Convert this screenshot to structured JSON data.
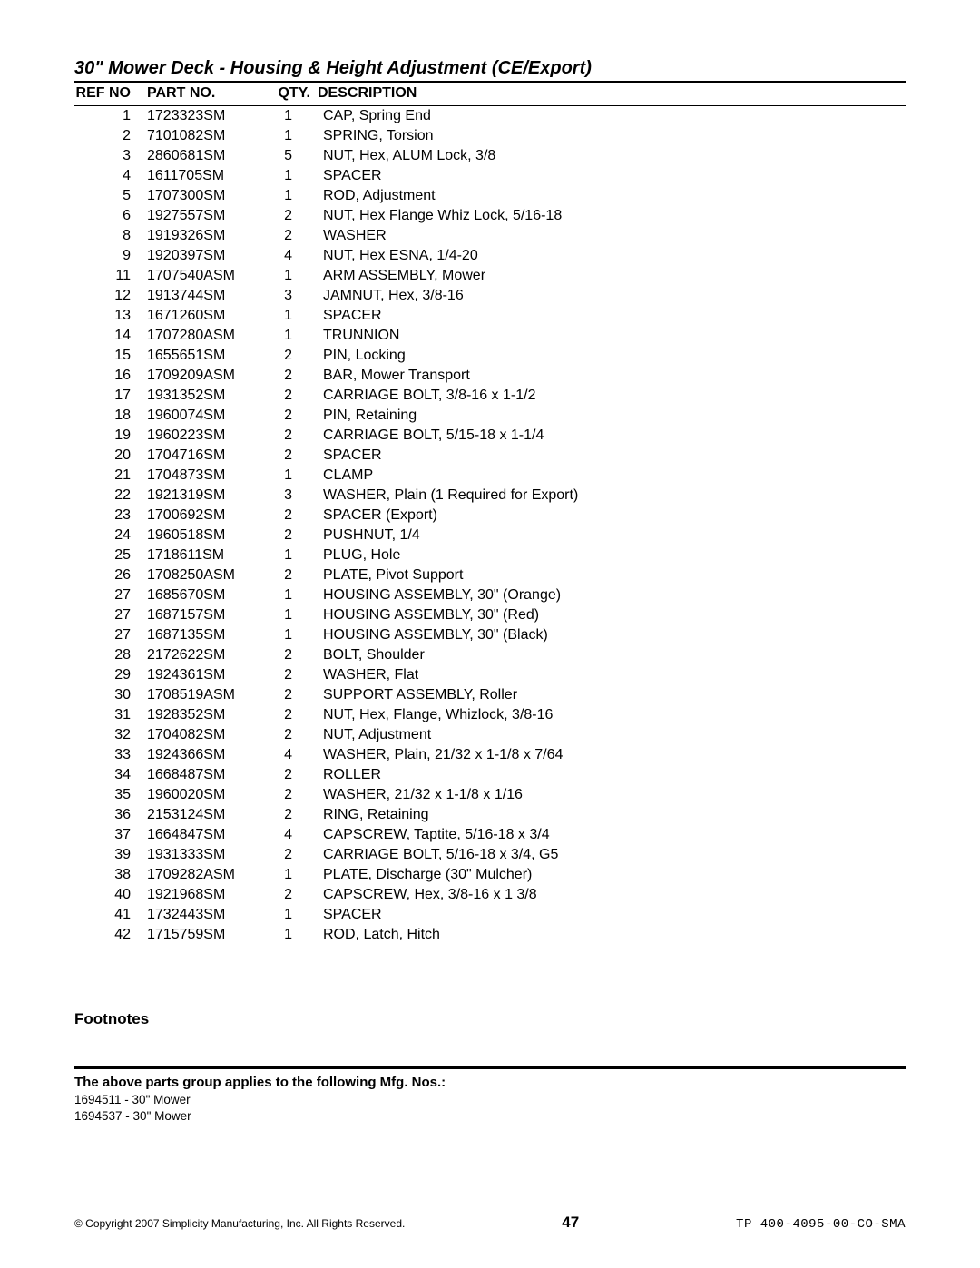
{
  "title": "30\" Mower Deck - Housing & Height Adjustment (CE/Export)",
  "columns": {
    "ref": "REF NO",
    "part": "PART NO.",
    "qty": "QTY.",
    "desc": "DESCRIPTION"
  },
  "rows": [
    {
      "ref": "1",
      "part": "1723323SM",
      "qty": "1",
      "desc": "CAP, Spring End"
    },
    {
      "ref": "2",
      "part": "7101082SM",
      "qty": "1",
      "desc": "SPRING, Torsion"
    },
    {
      "ref": "3",
      "part": "2860681SM",
      "qty": "5",
      "desc": "NUT, Hex, ALUM Lock, 3/8"
    },
    {
      "ref": "4",
      "part": "1611705SM",
      "qty": "1",
      "desc": "SPACER"
    },
    {
      "ref": "5",
      "part": "1707300SM",
      "qty": "1",
      "desc": "ROD, Adjustment"
    },
    {
      "ref": "6",
      "part": "1927557SM",
      "qty": "2",
      "desc": "NUT, Hex Flange Whiz Lock, 5/16-18"
    },
    {
      "ref": "8",
      "part": "1919326SM",
      "qty": "2",
      "desc": "WASHER"
    },
    {
      "ref": "9",
      "part": "1920397SM",
      "qty": "4",
      "desc": "NUT, Hex ESNA, 1/4-20"
    },
    {
      "ref": "11",
      "part": "1707540ASM",
      "qty": "1",
      "desc": "ARM ASSEMBLY, Mower"
    },
    {
      "ref": "12",
      "part": "1913744SM",
      "qty": "3",
      "desc": "JAMNUT, Hex, 3/8-16"
    },
    {
      "ref": "13",
      "part": "1671260SM",
      "qty": "1",
      "desc": "SPACER"
    },
    {
      "ref": "14",
      "part": "1707280ASM",
      "qty": "1",
      "desc": "TRUNNION"
    },
    {
      "ref": "15",
      "part": "1655651SM",
      "qty": "2",
      "desc": "PIN, Locking"
    },
    {
      "ref": "16",
      "part": "1709209ASM",
      "qty": "2",
      "desc": "BAR, Mower Transport"
    },
    {
      "ref": "17",
      "part": "1931352SM",
      "qty": "2",
      "desc": "CARRIAGE BOLT, 3/8-16 x 1-1/2"
    },
    {
      "ref": "18",
      "part": "1960074SM",
      "qty": "2",
      "desc": "PIN, Retaining"
    },
    {
      "ref": "19",
      "part": "1960223SM",
      "qty": "2",
      "desc": "CARRIAGE BOLT, 5/15-18 x 1-1/4"
    },
    {
      "ref": "20",
      "part": "1704716SM",
      "qty": "2",
      "desc": "SPACER"
    },
    {
      "ref": "21",
      "part": "1704873SM",
      "qty": "1",
      "desc": "CLAMP"
    },
    {
      "ref": "22",
      "part": "1921319SM",
      "qty": "3",
      "desc": "WASHER, Plain (1 Required for Export)"
    },
    {
      "ref": "23",
      "part": "1700692SM",
      "qty": "2",
      "desc": "SPACER (Export)"
    },
    {
      "ref": "24",
      "part": "1960518SM",
      "qty": "2",
      "desc": "PUSHNUT, 1/4"
    },
    {
      "ref": "25",
      "part": "1718611SM",
      "qty": "1",
      "desc": "PLUG, Hole"
    },
    {
      "ref": "26",
      "part": "1708250ASM",
      "qty": "2",
      "desc": "PLATE, Pivot Support"
    },
    {
      "ref": "27",
      "part": "1685670SM",
      "qty": "1",
      "desc": "HOUSING ASSEMBLY, 30\" (Orange)"
    },
    {
      "ref": "27",
      "part": "1687157SM",
      "qty": "1",
      "desc": "HOUSING ASSEMBLY, 30\" (Red)"
    },
    {
      "ref": "27",
      "part": "1687135SM",
      "qty": "1",
      "desc": "HOUSING ASSEMBLY, 30\" (Black)"
    },
    {
      "ref": "28",
      "part": "2172622SM",
      "qty": "2",
      "desc": "BOLT, Shoulder"
    },
    {
      "ref": "29",
      "part": "1924361SM",
      "qty": "2",
      "desc": "WASHER, Flat"
    },
    {
      "ref": "30",
      "part": "1708519ASM",
      "qty": "2",
      "desc": "SUPPORT ASSEMBLY, Roller"
    },
    {
      "ref": "31",
      "part": "1928352SM",
      "qty": "2",
      "desc": "NUT, Hex, Flange, Whizlock, 3/8-16"
    },
    {
      "ref": "32",
      "part": "1704082SM",
      "qty": "2",
      "desc": "NUT, Adjustment"
    },
    {
      "ref": "33",
      "part": "1924366SM",
      "qty": "4",
      "desc": "WASHER, Plain, 21/32 x 1-1/8 x 7/64"
    },
    {
      "ref": "34",
      "part": "1668487SM",
      "qty": "2",
      "desc": "ROLLER"
    },
    {
      "ref": "35",
      "part": "1960020SM",
      "qty": "2",
      "desc": "WASHER, 21/32 x 1-1/8 x 1/16"
    },
    {
      "ref": "36",
      "part": "2153124SM",
      "qty": "2",
      "desc": "RING, Retaining"
    },
    {
      "ref": "37",
      "part": "1664847SM",
      "qty": "4",
      "desc": "CAPSCREW, Taptite, 5/16-18 x 3/4"
    },
    {
      "ref": "39",
      "part": "1931333SM",
      "qty": "2",
      "desc": "CARRIAGE BOLT, 5/16-18 x 3/4, G5"
    },
    {
      "ref": "38",
      "part": "1709282ASM",
      "qty": "1",
      "desc": "PLATE, Discharge (30\" Mulcher)"
    },
    {
      "ref": "40",
      "part": "1921968SM",
      "qty": "2",
      "desc": "CAPSCREW, Hex, 3/8-16 x 1 3/8"
    },
    {
      "ref": "41",
      "part": "1732443SM",
      "qty": "1",
      "desc": "SPACER"
    },
    {
      "ref": "42",
      "part": "1715759SM",
      "qty": "1",
      "desc": "ROD, Latch, Hitch"
    }
  ],
  "footnotes_heading": "Footnotes",
  "applies_heading": "The above parts group applies to the following Mfg. Nos.:",
  "mfg_lines": [
    "1694511 - 30\" Mower",
    "1694537 - 30\" Mower"
  ],
  "footer": {
    "copyright": "© Copyright 2007 Simplicity Manufacturing, Inc. All Rights Reserved.",
    "page": "47",
    "doc_code": "TP 400-4095-00-CO-SMA"
  }
}
